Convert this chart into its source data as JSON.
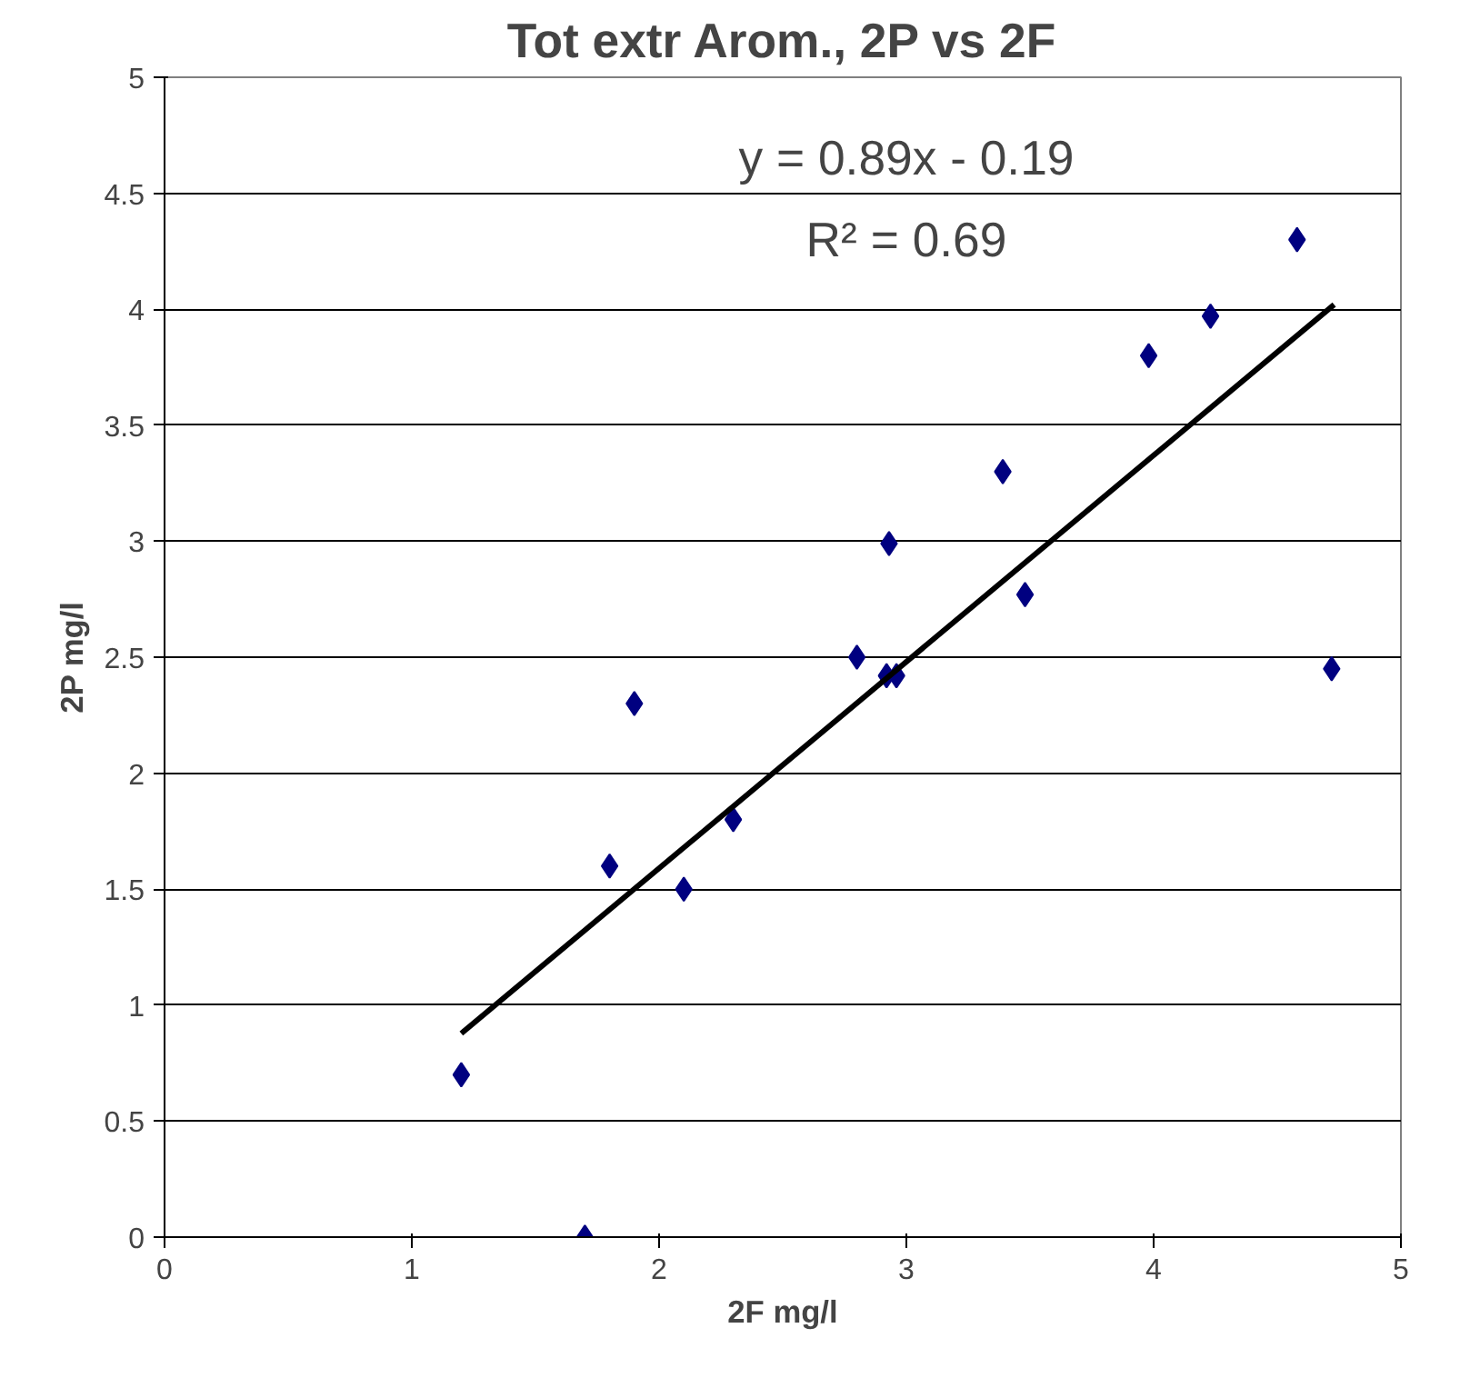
{
  "chart_data": {
    "type": "scatter",
    "title": "Tot extr Arom., 2P vs 2F",
    "xlabel": "2F mg/l",
    "ylabel": "2P mg/l",
    "xlim": [
      0,
      5
    ],
    "ylim": [
      0,
      5
    ],
    "xticks": [
      0,
      1,
      2,
      3,
      4,
      5
    ],
    "yticks": [
      0,
      0.5,
      1,
      1.5,
      2,
      2.5,
      3,
      3.5,
      4,
      4.5,
      5
    ],
    "grid": "y",
    "annotations": [
      "y = 0.89x - 0.19",
      "R² = 0.69"
    ],
    "series": [
      {
        "color": "#000080",
        "marker": "diamond",
        "x": [
          1.2,
          1.7,
          1.8,
          1.9,
          2.1,
          2.3,
          2.8,
          2.93,
          2.92,
          2.96,
          3.39,
          3.48,
          3.98,
          4.23,
          4.58,
          4.72
        ],
        "values": [
          0.7,
          0,
          1.6,
          2.3,
          1.5,
          1.8,
          2.5,
          2.99,
          2.42,
          2.42,
          3.3,
          2.77,
          3.8,
          3.97,
          4.3,
          2.45
        ]
      },
      {
        "type": "line",
        "color": "#000000",
        "line_style": "solid",
        "x": [
          1.2,
          4.73
        ],
        "values": [
          0.878,
          4.02
        ]
      }
    ]
  }
}
